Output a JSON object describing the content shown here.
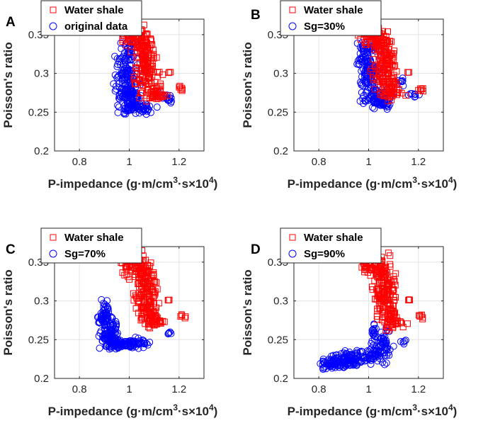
{
  "figure": {
    "panels": [
      "A",
      "B",
      "C",
      "D"
    ]
  },
  "chart_data": [
    {
      "panel": "A",
      "type": "scatter",
      "xlabel_main": "P-impedance (g·m/cm",
      "xlabel_sup1": "3",
      "xlabel_mid": "·s×10",
      "xlabel_sup2": "4",
      "xlabel_end": ")",
      "ylabel": "Poisson's ratio",
      "xlim": [
        0.7,
        1.3
      ],
      "ylim": [
        0.2,
        0.37
      ],
      "xticks": [
        0.8,
        1,
        1.2
      ],
      "xtick_labels": [
        "0.8",
        "1",
        "1.2"
      ],
      "yticks": [
        0.2,
        0.25,
        0.3,
        0.35
      ],
      "ytick_labels": [
        "0.2",
        "0.25",
        "0.3",
        "0.35"
      ],
      "grid": true,
      "legend_position": "top-left",
      "series": [
        {
          "name": "Water shale",
          "marker": "square",
          "color": "#ff0000",
          "cloud": "water"
        },
        {
          "name": "original data",
          "marker": "circle",
          "color": "#0000ff",
          "cloud": "orig"
        }
      ]
    },
    {
      "panel": "B",
      "type": "scatter",
      "xlabel_main": "P-impedance (g·m/cm",
      "xlabel_sup1": "3",
      "xlabel_mid": "·s×10",
      "xlabel_sup2": "4",
      "xlabel_end": ")",
      "ylabel": "Poisson's ratio",
      "xlim": [
        0.7,
        1.3
      ],
      "ylim": [
        0.2,
        0.37
      ],
      "xticks": [
        0.8,
        1,
        1.2
      ],
      "xtick_labels": [
        "0.8",
        "1",
        "1.2"
      ],
      "yticks": [
        0.2,
        0.25,
        0.3,
        0.35
      ],
      "ytick_labels": [
        "0.2",
        "0.25",
        "0.3",
        "0.35"
      ],
      "grid": true,
      "legend_position": "top-left",
      "series": [
        {
          "name": "Water shale",
          "marker": "square",
          "color": "#ff0000",
          "cloud": "water"
        },
        {
          "name": "Sg=30%",
          "marker": "circle",
          "color": "#0000ff",
          "cloud": "sg30"
        }
      ]
    },
    {
      "panel": "C",
      "type": "scatter",
      "xlabel_main": "P-impedance (g·m/cm",
      "xlabel_sup1": "3",
      "xlabel_mid": "·s×10",
      "xlabel_sup2": "4",
      "xlabel_end": ")",
      "ylabel": "Poisson's ratio",
      "xlim": [
        0.7,
        1.3
      ],
      "ylim": [
        0.2,
        0.37
      ],
      "xticks": [
        0.8,
        1,
        1.2
      ],
      "xtick_labels": [
        "0.8",
        "1",
        "1.2"
      ],
      "yticks": [
        0.2,
        0.25,
        0.3,
        0.35
      ],
      "ytick_labels": [
        "0.2",
        "0.25",
        "0.3",
        "0.35"
      ],
      "grid": true,
      "legend_position": "top-left",
      "series": [
        {
          "name": "Water shale",
          "marker": "square",
          "color": "#ff0000",
          "cloud": "water"
        },
        {
          "name": "Sg=70%",
          "marker": "circle",
          "color": "#0000ff",
          "cloud": "sg70"
        }
      ]
    },
    {
      "panel": "D",
      "type": "scatter",
      "xlabel_main": "P-impedance (g·m/cm",
      "xlabel_sup1": "3",
      "xlabel_mid": "·s×10",
      "xlabel_sup2": "4",
      "xlabel_end": ")",
      "ylabel": "Poisson's ratio",
      "xlim": [
        0.7,
        1.3
      ],
      "ylim": [
        0.2,
        0.37
      ],
      "xticks": [
        0.8,
        1,
        1.2
      ],
      "xtick_labels": [
        "0.8",
        "1",
        "1.2"
      ],
      "yticks": [
        0.2,
        0.25,
        0.3,
        0.35
      ],
      "ytick_labels": [
        "0.2",
        "0.25",
        "0.3",
        "0.35"
      ],
      "grid": true,
      "legend_position": "top-left",
      "series": [
        {
          "name": "Water shale",
          "marker": "square",
          "color": "#ff0000",
          "cloud": "water"
        },
        {
          "name": "Sg=90%",
          "marker": "circle",
          "color": "#0000ff",
          "cloud": "sg90"
        }
      ]
    }
  ],
  "point_clouds": {
    "water": [
      [
        1.0,
        0.35,
        0.03,
        0.012,
        40
      ],
      [
        1.05,
        0.34,
        0.03,
        0.015,
        60
      ],
      [
        1.07,
        0.32,
        0.03,
        0.018,
        60
      ],
      [
        1.06,
        0.3,
        0.04,
        0.015,
        50
      ],
      [
        1.09,
        0.28,
        0.04,
        0.012,
        40
      ],
      [
        1.1,
        0.272,
        0.04,
        0.004,
        20
      ],
      [
        1.21,
        0.28,
        0.01,
        0.003,
        6
      ],
      [
        1.16,
        0.301,
        0.005,
        0.001,
        3
      ]
    ],
    "orig": [
      [
        1.0,
        0.33,
        0.03,
        0.02,
        40
      ],
      [
        0.99,
        0.3,
        0.04,
        0.02,
        90
      ],
      [
        1.0,
        0.27,
        0.04,
        0.012,
        90
      ],
      [
        1.03,
        0.255,
        0.05,
        0.006,
        60
      ],
      [
        1.14,
        0.27,
        0.03,
        0.004,
        12
      ],
      [
        1.16,
        0.265,
        0.01,
        0.003,
        6
      ]
    ],
    "sg30": [
      [
        0.99,
        0.33,
        0.03,
        0.015,
        50
      ],
      [
        1.0,
        0.3,
        0.04,
        0.018,
        90
      ],
      [
        1.03,
        0.27,
        0.04,
        0.012,
        70
      ],
      [
        1.05,
        0.26,
        0.04,
        0.006,
        30
      ],
      [
        1.13,
        0.29,
        0.01,
        0.005,
        8
      ],
      [
        1.18,
        0.273,
        0.02,
        0.004,
        8
      ]
    ],
    "sg70": [
      [
        0.9,
        0.28,
        0.02,
        0.015,
        60
      ],
      [
        0.92,
        0.26,
        0.03,
        0.015,
        90
      ],
      [
        0.96,
        0.245,
        0.05,
        0.005,
        80
      ],
      [
        1.03,
        0.245,
        0.05,
        0.004,
        50
      ],
      [
        1.16,
        0.258,
        0.01,
        0.002,
        5
      ]
    ],
    "sg90": [
      [
        0.86,
        0.22,
        0.04,
        0.006,
        70
      ],
      [
        0.93,
        0.225,
        0.05,
        0.007,
        90
      ],
      [
        1.02,
        0.23,
        0.05,
        0.01,
        60
      ],
      [
        1.06,
        0.245,
        0.04,
        0.012,
        40
      ],
      [
        1.02,
        0.26,
        0.01,
        0.01,
        15
      ],
      [
        1.14,
        0.248,
        0.01,
        0.002,
        5
      ]
    ]
  }
}
